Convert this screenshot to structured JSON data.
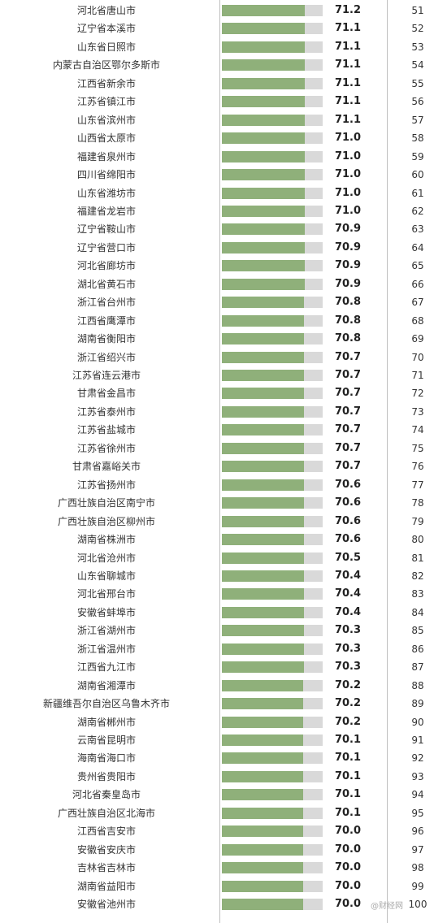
{
  "chart_data": {
    "type": "bar",
    "orientation": "horizontal",
    "rows": [
      {
        "name": "河北省唐山市",
        "value": 71.2,
        "rank": 51
      },
      {
        "name": "辽宁省本溪市",
        "value": 71.1,
        "rank": 52
      },
      {
        "name": "山东省日照市",
        "value": 71.1,
        "rank": 53
      },
      {
        "name": "内蒙古自治区鄂尔多斯市",
        "value": 71.1,
        "rank": 54
      },
      {
        "name": "江西省新余市",
        "value": 71.1,
        "rank": 55
      },
      {
        "name": "江苏省镇江市",
        "value": 71.1,
        "rank": 56
      },
      {
        "name": "山东省滨州市",
        "value": 71.1,
        "rank": 57
      },
      {
        "name": "山西省太原市",
        "value": 71.0,
        "rank": 58
      },
      {
        "name": "福建省泉州市",
        "value": 71.0,
        "rank": 59
      },
      {
        "name": "四川省绵阳市",
        "value": 71.0,
        "rank": 60
      },
      {
        "name": "山东省潍坊市",
        "value": 71.0,
        "rank": 61
      },
      {
        "name": "福建省龙岩市",
        "value": 71.0,
        "rank": 62
      },
      {
        "name": "辽宁省鞍山市",
        "value": 70.9,
        "rank": 63
      },
      {
        "name": "辽宁省营口市",
        "value": 70.9,
        "rank": 64
      },
      {
        "name": "河北省廊坊市",
        "value": 70.9,
        "rank": 65
      },
      {
        "name": "湖北省黄石市",
        "value": 70.9,
        "rank": 66
      },
      {
        "name": "浙江省台州市",
        "value": 70.8,
        "rank": 67
      },
      {
        "name": "江西省鹰潭市",
        "value": 70.8,
        "rank": 68
      },
      {
        "name": "湖南省衡阳市",
        "value": 70.8,
        "rank": 69
      },
      {
        "name": "浙江省绍兴市",
        "value": 70.7,
        "rank": 70
      },
      {
        "name": "江苏省连云港市",
        "value": 70.7,
        "rank": 71
      },
      {
        "name": "甘肃省金昌市",
        "value": 70.7,
        "rank": 72
      },
      {
        "name": "江苏省泰州市",
        "value": 70.7,
        "rank": 73
      },
      {
        "name": "江苏省盐城市",
        "value": 70.7,
        "rank": 74
      },
      {
        "name": "江苏省徐州市",
        "value": 70.7,
        "rank": 75
      },
      {
        "name": "甘肃省嘉峪关市",
        "value": 70.7,
        "rank": 76
      },
      {
        "name": "江苏省扬州市",
        "value": 70.6,
        "rank": 77
      },
      {
        "name": "广西壮族自治区南宁市",
        "value": 70.6,
        "rank": 78
      },
      {
        "name": "广西壮族自治区柳州市",
        "value": 70.6,
        "rank": 79
      },
      {
        "name": "湖南省株洲市",
        "value": 70.6,
        "rank": 80
      },
      {
        "name": "河北省沧州市",
        "value": 70.5,
        "rank": 81
      },
      {
        "name": "山东省聊城市",
        "value": 70.4,
        "rank": 82
      },
      {
        "name": "河北省邢台市",
        "value": 70.4,
        "rank": 83
      },
      {
        "name": "安徽省蚌埠市",
        "value": 70.4,
        "rank": 84
      },
      {
        "name": "浙江省湖州市",
        "value": 70.3,
        "rank": 85
      },
      {
        "name": "浙江省温州市",
        "value": 70.3,
        "rank": 86
      },
      {
        "name": "江西省九江市",
        "value": 70.3,
        "rank": 87
      },
      {
        "name": "湖南省湘潭市",
        "value": 70.2,
        "rank": 88
      },
      {
        "name": "新疆维吾尔自治区乌鲁木齐市",
        "value": 70.2,
        "rank": 89
      },
      {
        "name": "湖南省郴州市",
        "value": 70.2,
        "rank": 90
      },
      {
        "name": "云南省昆明市",
        "value": 70.1,
        "rank": 91
      },
      {
        "name": "海南省海口市",
        "value": 70.1,
        "rank": 92
      },
      {
        "name": "贵州省贵阳市",
        "value": 70.1,
        "rank": 93
      },
      {
        "name": "河北省秦皇岛市",
        "value": 70.1,
        "rank": 94
      },
      {
        "name": "广西壮族自治区北海市",
        "value": 70.1,
        "rank": 95
      },
      {
        "name": "江西省吉安市",
        "value": 70.0,
        "rank": 96
      },
      {
        "name": "安徽省安庆市",
        "value": 70.0,
        "rank": 97
      },
      {
        "name": "吉林省吉林市",
        "value": 70.0,
        "rank": 98
      },
      {
        "name": "湖南省益阳市",
        "value": 70.0,
        "rank": 99
      },
      {
        "name": "安徽省池州市",
        "value": 70.0,
        "rank": 100
      }
    ],
    "colors": {
      "bar": "#8fb07a",
      "bar_remainder": "#d9d9d9",
      "rule": "#bfbfbf"
    }
  },
  "watermark": "@财经网"
}
